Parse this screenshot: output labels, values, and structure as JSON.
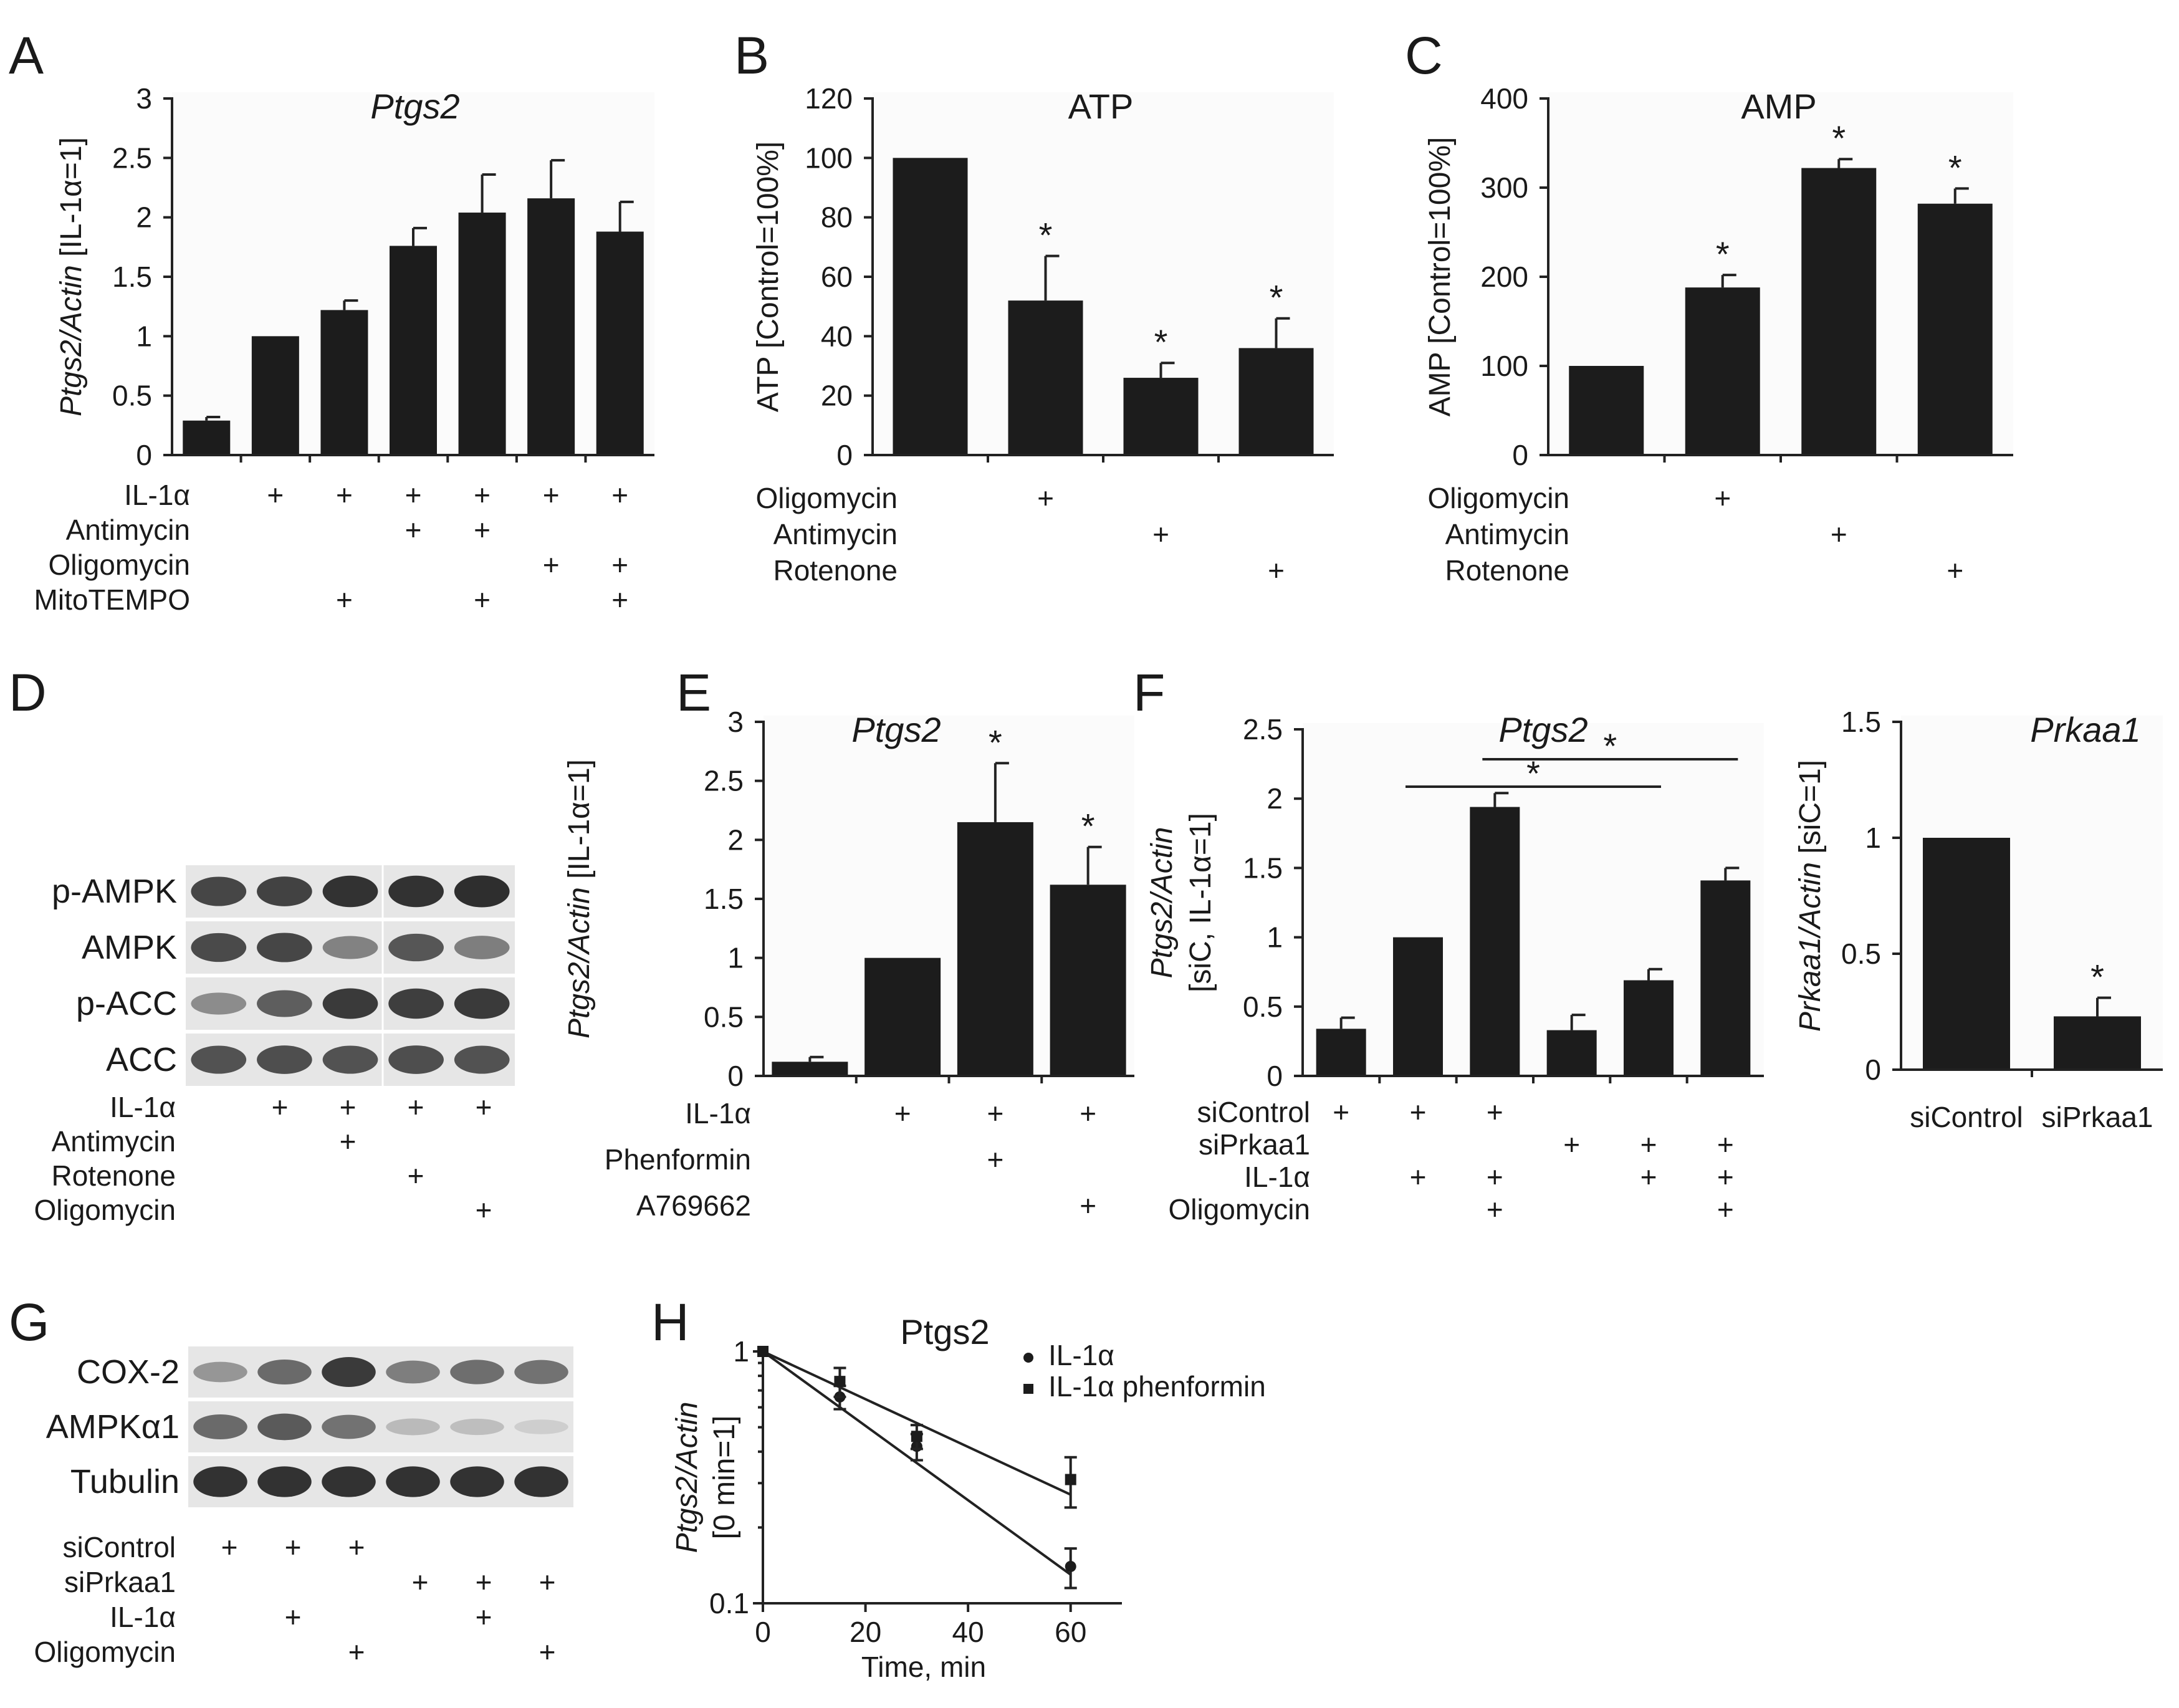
{
  "figure_labels": {
    "A": "A",
    "B": "B",
    "C": "C",
    "D": "D",
    "E": "E",
    "F": "F",
    "G": "G",
    "H": "H"
  },
  "chart_data": [
    {
      "id": "A",
      "type": "bar",
      "title": "Ptgs2",
      "title_italic": true,
      "ylabel": "Ptgs2/Actin [IL-1α=1]",
      "ylim": [
        0,
        3
      ],
      "yticks": [
        0,
        0.5,
        1,
        1.5,
        2,
        2.5,
        3
      ],
      "ytick_labels": [
        "0",
        "0.5",
        "1",
        "1.5",
        "2",
        "2.5",
        "3"
      ],
      "values": [
        0.29,
        1.0,
        1.22,
        1.76,
        2.04,
        2.16,
        1.88
      ],
      "errors": [
        0.03,
        0.0,
        0.08,
        0.15,
        0.32,
        0.32,
        0.25
      ],
      "stars": [
        false,
        false,
        false,
        false,
        false,
        false,
        false
      ],
      "conditions": [
        {
          "label": "IL-1α",
          "marks": [
            false,
            true,
            true,
            true,
            true,
            true,
            true
          ]
        },
        {
          "label": "Antimycin",
          "marks": [
            false,
            false,
            false,
            true,
            true,
            false,
            false
          ]
        },
        {
          "label": "Oligomycin",
          "marks": [
            false,
            false,
            false,
            false,
            false,
            true,
            true
          ]
        },
        {
          "label": "MitoTEMPO",
          "marks": [
            false,
            false,
            true,
            false,
            true,
            false,
            true
          ]
        }
      ]
    },
    {
      "id": "B",
      "type": "bar",
      "title": "ATP",
      "title_italic": false,
      "ylabel": "ATP [Control=100%]",
      "ylim": [
        0,
        120
      ],
      "yticks": [
        0,
        20,
        40,
        60,
        80,
        100,
        120
      ],
      "ytick_labels": [
        "0",
        "20",
        "40",
        "60",
        "80",
        "100",
        "120"
      ],
      "values": [
        100,
        52,
        26,
        36
      ],
      "errors": [
        0,
        15,
        5,
        10
      ],
      "stars": [
        false,
        true,
        true,
        true
      ],
      "conditions": [
        {
          "label": "Oligomycin",
          "marks": [
            false,
            true,
            false,
            false
          ]
        },
        {
          "label": "Antimycin",
          "marks": [
            false,
            false,
            true,
            false
          ]
        },
        {
          "label": "Rotenone",
          "marks": [
            false,
            false,
            false,
            true
          ]
        }
      ]
    },
    {
      "id": "C",
      "type": "bar",
      "title": "AMP",
      "title_italic": false,
      "ylabel": "AMP [Control=100%]",
      "ylim": [
        0,
        400
      ],
      "yticks": [
        0,
        100,
        200,
        300,
        400
      ],
      "ytick_labels": [
        "0",
        "100",
        "200",
        "300",
        "400"
      ],
      "values": [
        100,
        188,
        322,
        282
      ],
      "errors": [
        0,
        14,
        10,
        17
      ],
      "stars": [
        false,
        true,
        true,
        true
      ],
      "conditions": [
        {
          "label": "Oligomycin",
          "marks": [
            false,
            true,
            false,
            false
          ]
        },
        {
          "label": "Antimycin",
          "marks": [
            false,
            false,
            true,
            false
          ]
        },
        {
          "label": "Rotenone",
          "marks": [
            false,
            false,
            false,
            true
          ]
        }
      ]
    },
    {
      "id": "E",
      "type": "bar",
      "title": "Ptgs2",
      "title_italic": true,
      "ylabel": "Ptgs2/Actin [IL-1α=1]",
      "ylim": [
        0,
        3
      ],
      "yticks": [
        0,
        0.5,
        1,
        1.5,
        2,
        2.5,
        3
      ],
      "ytick_labels": [
        "0",
        "0.5",
        "1",
        "1.5",
        "2",
        "2.5",
        "3"
      ],
      "values": [
        0.12,
        1.0,
        2.15,
        1.62
      ],
      "errors": [
        0.04,
        0.0,
        0.5,
        0.32
      ],
      "stars": [
        false,
        false,
        true,
        true
      ],
      "conditions": [
        {
          "label": "IL-1α",
          "marks": [
            false,
            true,
            true,
            true
          ]
        },
        {
          "label": "Phenformin",
          "marks": [
            false,
            false,
            true,
            false
          ]
        },
        {
          "label": "A769662",
          "marks": [
            false,
            false,
            false,
            true
          ]
        }
      ]
    },
    {
      "id": "F1",
      "type": "bar",
      "title": "Ptgs2",
      "title_italic": true,
      "ylabel": "Ptgs2/Actin [siC, IL-1α=1]",
      "ylim": [
        0,
        2.5
      ],
      "yticks": [
        0,
        0.5,
        1,
        1.5,
        2,
        2.5
      ],
      "ytick_labels": [
        "0",
        "0.5",
        "1",
        "1.5",
        "2",
        "2.5"
      ],
      "values": [
        0.34,
        1.0,
        1.94,
        0.33,
        0.69,
        1.41
      ],
      "errors": [
        0.08,
        0.0,
        0.1,
        0.11,
        0.08,
        0.09
      ],
      "stars": [
        false,
        false,
        false,
        false,
        false,
        false
      ],
      "significance": [
        {
          "from": 2,
          "to": 5,
          "label": "*"
        },
        {
          "from": 3,
          "to": 6,
          "label": "*"
        }
      ],
      "conditions": [
        {
          "label": "siControl",
          "marks": [
            true,
            true,
            true,
            false,
            false,
            false
          ]
        },
        {
          "label": "siPrkaa1",
          "marks": [
            false,
            false,
            false,
            true,
            true,
            true
          ]
        },
        {
          "label": "IL-1α",
          "marks": [
            false,
            true,
            true,
            false,
            true,
            true
          ]
        },
        {
          "label": "Oligomycin",
          "marks": [
            false,
            false,
            true,
            false,
            false,
            true
          ]
        }
      ]
    },
    {
      "id": "F2",
      "type": "bar",
      "title": "Prkaa1",
      "title_italic": true,
      "ylabel": "Prkaa1/Actin [siC=1]",
      "ylim": [
        0,
        1.5
      ],
      "yticks": [
        0,
        0.5,
        1,
        1.5
      ],
      "ytick_labels": [
        "0",
        "0.5",
        "1",
        "1.5"
      ],
      "categories": [
        "siControl",
        "siPrkaa1"
      ],
      "values": [
        1.0,
        0.23
      ],
      "errors": [
        0,
        0.08
      ],
      "stars": [
        false,
        true
      ]
    },
    {
      "id": "H",
      "type": "line",
      "title": "Ptgs2",
      "xlabel": "Time, min",
      "ylabel": "Ptgs2/Actin [0 min=1]",
      "yscale": "log",
      "xlim": [
        0,
        70
      ],
      "ylim": [
        0.1,
        1
      ],
      "xticks": [
        0,
        20,
        40,
        60
      ],
      "xtick_labels": [
        "0",
        "20",
        "40",
        "60"
      ],
      "yticks": [
        0.1,
        1
      ],
      "ytick_labels": [
        "0.1",
        "1"
      ],
      "x": [
        0,
        15,
        30,
        60
      ],
      "series": [
        {
          "name": "IL-1α",
          "marker": "circle",
          "values": [
            1.0,
            0.66,
            0.42,
            0.14
          ],
          "errors": [
            0,
            0.07,
            0.05,
            0.025
          ],
          "fit": [
            1.0,
            0.13
          ]
        },
        {
          "name": "IL-1α phenformin",
          "marker": "square",
          "values": [
            1.0,
            0.76,
            0.46,
            0.31
          ],
          "errors": [
            0,
            0.1,
            0.05,
            0.07
          ],
          "fit": [
            1.0,
            0.27
          ]
        }
      ]
    }
  ],
  "blots": {
    "D": {
      "rows": [
        "p-AMPK",
        "AMPK",
        "p-ACC",
        "ACC"
      ],
      "lanes": 5,
      "intensity": [
        [
          0.8,
          0.82,
          0.9,
          0.9,
          0.92
        ],
        [
          0.78,
          0.8,
          0.5,
          0.72,
          0.52
        ],
        [
          0.45,
          0.68,
          0.86,
          0.84,
          0.86
        ],
        [
          0.74,
          0.76,
          0.74,
          0.76,
          0.74
        ]
      ],
      "conditions": [
        {
          "label": "IL-1α",
          "marks": [
            false,
            true,
            true,
            true,
            true
          ]
        },
        {
          "label": "Antimycin",
          "marks": [
            false,
            false,
            true,
            false,
            false
          ]
        },
        {
          "label": "Rotenone",
          "marks": [
            false,
            false,
            false,
            true,
            false
          ]
        },
        {
          "label": "Oligomycin",
          "marks": [
            false,
            false,
            false,
            false,
            true
          ]
        }
      ]
    },
    "G": {
      "rows": [
        "COX-2",
        "AMPKα1",
        "Tubulin"
      ],
      "lanes": 6,
      "intensity": [
        [
          0.4,
          0.62,
          0.86,
          0.52,
          0.6,
          0.58
        ],
        [
          0.62,
          0.7,
          0.58,
          0.22,
          0.2,
          0.12
        ],
        [
          0.9,
          0.9,
          0.9,
          0.9,
          0.9,
          0.9
        ]
      ],
      "conditions": [
        {
          "label": "siControl",
          "marks": [
            true,
            true,
            true,
            false,
            false,
            false
          ]
        },
        {
          "label": "siPrkaa1",
          "marks": [
            false,
            false,
            false,
            true,
            true,
            true
          ]
        },
        {
          "label": "IL-1α",
          "marks": [
            false,
            true,
            false,
            false,
            true,
            false
          ]
        },
        {
          "label": "Oligomycin",
          "marks": [
            false,
            false,
            true,
            false,
            false,
            true
          ]
        }
      ]
    }
  },
  "symbols": {
    "plus": "+",
    "star": "*"
  }
}
